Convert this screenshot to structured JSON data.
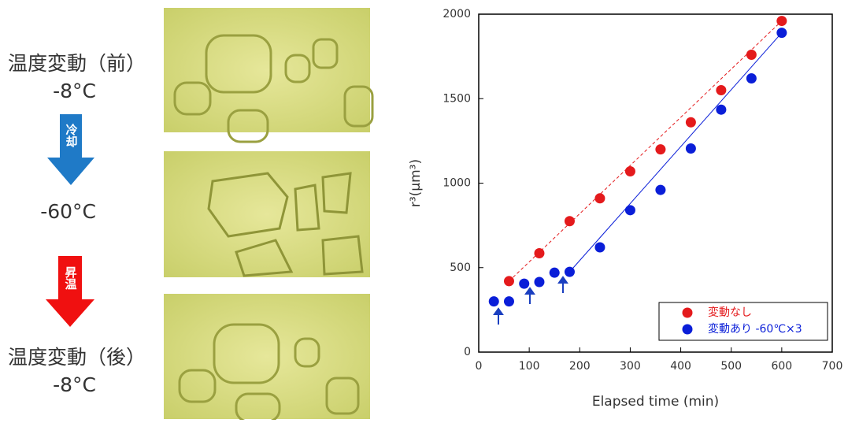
{
  "panel": {
    "before_label": "温度変動（前）",
    "before_temp": "-8°C",
    "cool_label": "冷却",
    "cold_temp": "-60°C",
    "warm_label": "昇温",
    "after_label": "温度変動（後）",
    "after_temp": "-8°C"
  },
  "chart_data": {
    "type": "scatter",
    "x_label": "Elapsed time (min)",
    "y_label": "r³(μm³)",
    "xlim": [
      0,
      700
    ],
    "xticks": [
      0,
      100,
      200,
      300,
      400,
      500,
      600,
      700
    ],
    "ylim": [
      0,
      2000
    ],
    "yticks": [
      0,
      500,
      1000,
      1500,
      2000
    ],
    "legend_position": "lower right",
    "series": [
      {
        "name": "変動なし",
        "color": "#e41a1c",
        "line_style": "dashed",
        "x": [
          60,
          120,
          180,
          240,
          300,
          360,
          420,
          480,
          540,
          600
        ],
        "values": [
          420,
          585,
          775,
          910,
          1070,
          1200,
          1360,
          1550,
          1760,
          1960
        ],
        "fit_x": [
          60,
          600
        ],
        "fit_y": [
          420,
          1960
        ]
      },
      {
        "name": "変動あり -60℃×3",
        "color": "#0a1ed8",
        "line_style": "solid",
        "x": [
          30,
          60,
          90,
          120,
          150,
          180,
          240,
          300,
          360,
          420,
          480,
          540,
          600
        ],
        "values": [
          300,
          300,
          405,
          415,
          470,
          475,
          620,
          840,
          960,
          1205,
          1435,
          1620,
          1890
        ],
        "fit_x": [
          180,
          600
        ],
        "fit_y": [
          475,
          1890
        ]
      }
    ]
  }
}
